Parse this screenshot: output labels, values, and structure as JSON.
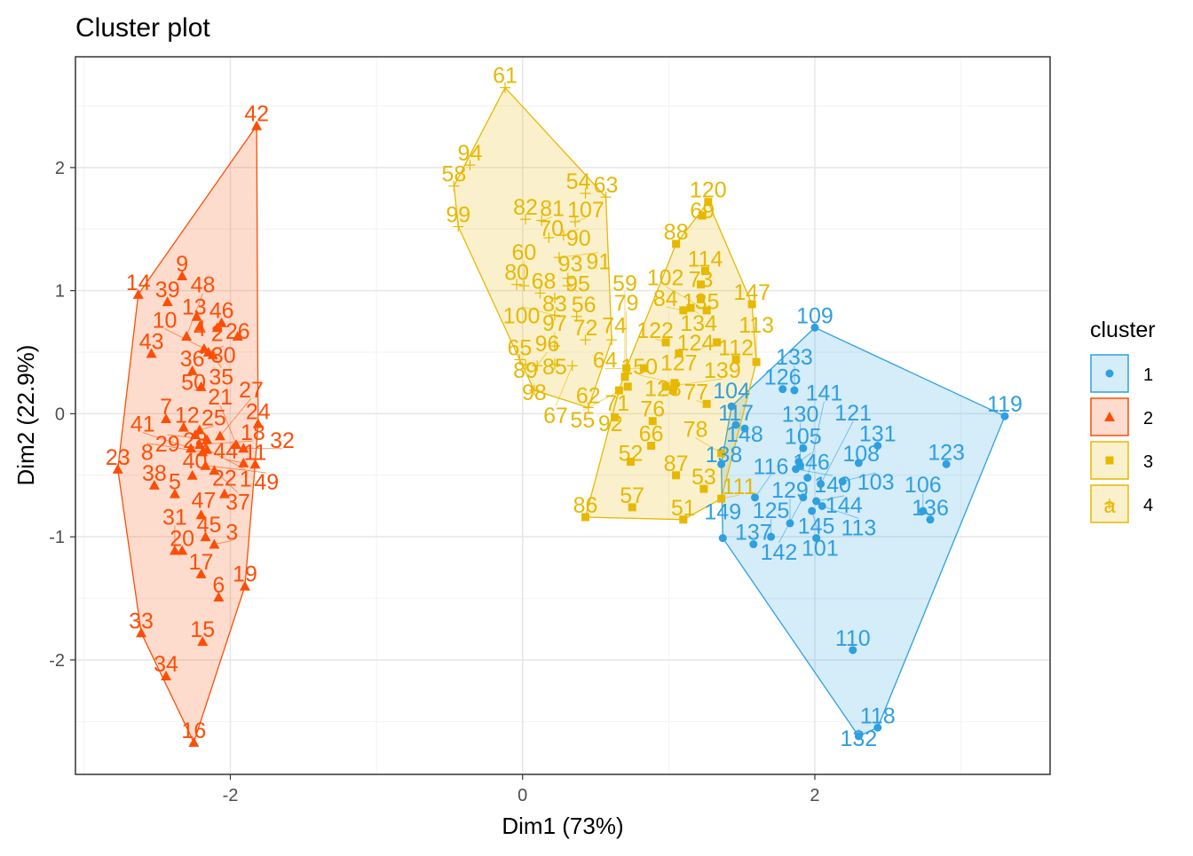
{
  "chart_data": {
    "type": "scatter",
    "title": "Cluster plot",
    "xlabel": "Dim1 (73%)",
    "ylabel": "Dim2 (22.9%)",
    "xlim": [
      -3.06,
      3.61
    ],
    "ylim": [
      -2.93,
      2.9
    ],
    "xticks": [
      -2,
      0,
      2
    ],
    "yticks": [
      -2,
      -1,
      0,
      1,
      2
    ],
    "grid": true,
    "legend": {
      "title": "cluster",
      "position": "right",
      "entries": [
        "1",
        "2",
        "3",
        "4"
      ]
    },
    "colors": {
      "1": "#2E9FDF",
      "2": "#FC4E07",
      "3": "#E7B800",
      "4": "#E7B800"
    },
    "shapes": {
      "1": "circle",
      "2": "triangle",
      "3": "square",
      "4": "cross"
    },
    "series": [
      {
        "name": "1",
        "points": [
          [
            "109",
            2.0,
            0.7
          ],
          [
            "119",
            3.3,
            -0.02
          ],
          [
            "118",
            2.43,
            -2.55
          ],
          [
            "132",
            2.3,
            -2.62
          ],
          [
            "149",
            1.37,
            -1.01
          ],
          [
            "104",
            1.43,
            0.06
          ],
          [
            "138",
            1.36,
            -0.41
          ],
          [
            "117",
            1.46,
            -0.09
          ],
          [
            "110",
            2.26,
            -1.92
          ],
          [
            "131",
            2.43,
            -0.26
          ],
          [
            "108",
            2.3,
            -0.4
          ],
          [
            "123",
            2.9,
            -0.41
          ],
          [
            "106",
            2.74,
            -0.79
          ],
          [
            "136",
            2.79,
            -0.86
          ],
          [
            "126",
            1.78,
            0.2
          ],
          [
            "133",
            1.86,
            0.19
          ],
          [
            "105",
            1.92,
            -0.28
          ],
          [
            "146",
            1.89,
            -0.39
          ],
          [
            "140",
            1.87,
            -0.45
          ],
          [
            "103",
            2.19,
            -0.55
          ],
          [
            "116",
            1.59,
            -0.68
          ],
          [
            "137",
            1.58,
            -1.06
          ],
          [
            "125",
            1.7,
            -1.0
          ],
          [
            "144",
            2.01,
            -0.71
          ],
          [
            "121",
            2.04,
            -0.57
          ],
          [
            "142",
            1.92,
            -0.68
          ],
          [
            "101",
            1.98,
            -0.79
          ],
          [
            "141",
            1.95,
            -0.52
          ],
          [
            "145",
            2.01,
            -1.01
          ],
          [
            "129",
            1.83,
            -0.89
          ],
          [
            "113",
            2.05,
            -0.75
          ],
          [
            "130",
            1.9,
            -0.42
          ],
          [
            "148",
            1.52,
            -0.12
          ]
        ]
      },
      {
        "name": "2",
        "points": [
          [
            "42",
            -1.82,
            2.34
          ],
          [
            "9",
            -2.33,
            1.12
          ],
          [
            "14",
            -2.63,
            0.97
          ],
          [
            "39",
            -2.43,
            0.91
          ],
          [
            "13",
            -2.23,
            0.79
          ],
          [
            "46",
            -2.06,
            0.74
          ],
          [
            "2",
            -2.09,
            0.7
          ],
          [
            "26",
            -1.95,
            0.63
          ],
          [
            "4",
            -2.21,
            0.71
          ],
          [
            "43",
            -2.54,
            0.49
          ],
          [
            "48",
            -2.3,
            0.63
          ],
          [
            "30",
            -2.15,
            0.5
          ],
          [
            "35",
            -2.12,
            0.48
          ],
          [
            "36",
            -2.26,
            0.35
          ],
          [
            "10",
            -2.18,
            0.53
          ],
          [
            "50",
            -2.2,
            0.22
          ],
          [
            "7",
            -2.44,
            -0.04
          ],
          [
            "12",
            -2.32,
            -0.11
          ],
          [
            "25",
            -2.21,
            -0.13
          ],
          [
            "27",
            -2.07,
            -0.18
          ],
          [
            "24",
            -1.81,
            -0.08
          ],
          [
            "28",
            -2.24,
            -0.17
          ],
          [
            "29",
            -2.16,
            -0.21
          ],
          [
            "41",
            -2.27,
            -0.28
          ],
          [
            "8",
            -2.19,
            -0.31
          ],
          [
            "1",
            -2.16,
            -0.29
          ],
          [
            "18",
            -2.21,
            -0.25
          ],
          [
            "21",
            -1.96,
            -0.25
          ],
          [
            "32",
            -1.91,
            -0.28
          ],
          [
            "23",
            -2.77,
            -0.45
          ],
          [
            "38",
            -2.52,
            -0.58
          ],
          [
            "5",
            -2.38,
            -0.65
          ],
          [
            "37",
            -2.11,
            -0.46
          ],
          [
            "40",
            -2.26,
            -0.5
          ],
          [
            "44",
            -1.91,
            -0.4
          ],
          [
            "11",
            -1.83,
            -0.41
          ],
          [
            "49",
            -2.17,
            -0.42
          ],
          [
            "22",
            -2.04,
            -0.65
          ],
          [
            "47",
            -2.2,
            -0.82
          ],
          [
            "20",
            -2.33,
            -1.11
          ],
          [
            "45",
            -2.17,
            -1.0
          ],
          [
            "17",
            -2.2,
            -1.3
          ],
          [
            "6",
            -2.08,
            -1.49
          ],
          [
            "19",
            -1.9,
            -1.4
          ],
          [
            "33",
            -2.61,
            -1.78
          ],
          [
            "34",
            -2.44,
            -2.13
          ],
          [
            "15",
            -2.19,
            -1.85
          ],
          [
            "16",
            -2.25,
            -2.67
          ],
          [
            "3",
            -2.11,
            -1.06
          ],
          [
            "31",
            -2.38,
            -1.11
          ]
        ]
      },
      {
        "name": "3",
        "points": [
          [
            "120",
            1.27,
            1.72
          ],
          [
            "69",
            1.23,
            1.61
          ],
          [
            "88",
            1.05,
            1.38
          ],
          [
            "114",
            1.25,
            1.16
          ],
          [
            "147",
            1.57,
            0.89
          ],
          [
            "73",
            1.22,
            1.05
          ],
          [
            "135",
            1.22,
            0.93
          ],
          [
            "134",
            1.15,
            0.86
          ],
          [
            "84",
            1.1,
            0.84
          ],
          [
            "102",
            1.26,
            0.84
          ],
          [
            "122",
            0.98,
            0.58
          ],
          [
            "124",
            1.33,
            0.58
          ],
          [
            "112",
            1.46,
            0.44
          ],
          [
            "127",
            1.07,
            0.49
          ],
          [
            "128",
            1.03,
            0.19
          ],
          [
            "150",
            1.04,
            0.25
          ],
          [
            "139",
            0.98,
            0.22
          ],
          [
            "77",
            1.26,
            0.08
          ],
          [
            "79",
            0.71,
            0.37
          ],
          [
            "64",
            0.83,
            0.37
          ],
          [
            "92",
            0.66,
            0.19
          ],
          [
            "55",
            0.72,
            0.22
          ],
          [
            "76",
            0.89,
            -0.06
          ],
          [
            "71",
            0.63,
            -0.03
          ],
          [
            "52",
            0.74,
            -0.39
          ],
          [
            "66",
            0.88,
            -0.26
          ],
          [
            "87",
            1.05,
            -0.5
          ],
          [
            "57",
            0.75,
            -0.76
          ],
          [
            "51",
            1.1,
            -0.86
          ],
          [
            "53",
            1.24,
            -0.61
          ],
          [
            "86",
            0.43,
            -0.84
          ],
          [
            "78",
            1.36,
            -0.32
          ],
          [
            "111",
            1.36,
            -0.69
          ],
          [
            "113",
            1.6,
            0.42
          ],
          [
            "59",
            0.7,
            0.3
          ]
        ]
      },
      {
        "name": "4",
        "points": [
          [
            "61",
            -0.12,
            2.65
          ],
          [
            "63",
            0.57,
            1.76
          ],
          [
            "62",
            0.45,
            0.05
          ],
          [
            "58",
            -0.47,
            1.85
          ],
          [
            "99",
            -0.44,
            1.52
          ],
          [
            "94",
            -0.36,
            2.02
          ],
          [
            "54",
            0.43,
            1.79
          ],
          [
            "82",
            0.02,
            1.58
          ],
          [
            "81",
            0.13,
            1.57
          ],
          [
            "107",
            0.36,
            1.56
          ],
          [
            "70",
            0.18,
            1.43
          ],
          [
            "90",
            0.28,
            1.45
          ],
          [
            "91",
            0.25,
            1.27
          ],
          [
            "93",
            0.31,
            1.1
          ],
          [
            "95",
            0.31,
            1.04
          ],
          [
            "80",
            -0.04,
            1.05
          ],
          [
            "60",
            0.01,
            1.04
          ],
          [
            "68",
            0.12,
            0.98
          ],
          [
            "83",
            0.22,
            0.94
          ],
          [
            "100",
            0.22,
            0.8
          ],
          [
            "56",
            0.37,
            0.79
          ],
          [
            "65",
            -0.02,
            0.44
          ],
          [
            "97",
            0.22,
            0.55
          ],
          [
            "72",
            0.43,
            0.6
          ],
          [
            "74",
            0.61,
            0.6
          ],
          [
            "89",
            0.02,
            0.4
          ],
          [
            "96",
            0.1,
            0.39
          ],
          [
            "85",
            0.22,
            0.4
          ],
          [
            "67",
            0.34,
            0.39
          ],
          [
            "98",
            0.08,
            0.19
          ]
        ]
      }
    ]
  }
}
